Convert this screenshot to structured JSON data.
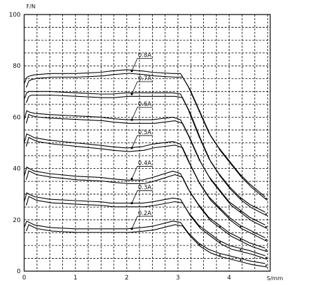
{
  "chart_data": {
    "type": "line",
    "title": "",
    "xlabel": "S/mm",
    "ylabel": "F/N",
    "xlim": [
      0,
      4.8
    ],
    "ylim": [
      0,
      100
    ],
    "x_ticks": [
      "0",
      "1",
      "2",
      "3",
      "4"
    ],
    "y_ticks": [
      "0",
      "20",
      "40",
      "60",
      "80",
      "100"
    ],
    "grid": true,
    "band_offset": 1.4,
    "series": [
      {
        "name": "0.8A",
        "x": [
          0,
          0.05,
          0.1,
          0.2,
          0.5,
          1.0,
          1.5,
          1.7,
          2.0,
          2.3,
          2.5,
          2.9,
          3.05,
          3.2,
          3.4,
          3.6,
          3.8,
          4.0,
          4.2,
          4.4,
          4.7
        ],
        "y": [
          73,
          75.5,
          76,
          76.5,
          77,
          77,
          77.5,
          78,
          78.5,
          78,
          77.5,
          77,
          77,
          72,
          63,
          54,
          48,
          43,
          38,
          34,
          29
        ]
      },
      {
        "name": "0.7A",
        "x": [
          0,
          0.05,
          0.1,
          0.2,
          0.5,
          1.0,
          1.5,
          1.7,
          2.0,
          2.3,
          2.5,
          2.9,
          3.05,
          3.2,
          3.4,
          3.6,
          3.8,
          4.0,
          4.2,
          4.4,
          4.7
        ],
        "y": [
          67,
          69.5,
          70,
          70,
          70,
          69.5,
          69,
          69,
          69.5,
          69.5,
          69.5,
          69.5,
          69,
          63,
          53,
          44,
          38,
          33,
          29,
          26,
          23
        ]
      },
      {
        "name": "0.6A",
        "x": [
          0,
          0.05,
          0.1,
          0.2,
          0.5,
          1.0,
          1.5,
          1.7,
          2.0,
          2.3,
          2.5,
          2.9,
          3.05,
          3.2,
          3.4,
          3.6,
          3.8,
          4.0,
          4.2,
          4.4,
          4.7
        ],
        "y": [
          59,
          62.5,
          62,
          61.5,
          61,
          60.5,
          60,
          59.5,
          59,
          59,
          59,
          60,
          59,
          53,
          44,
          37,
          32,
          27,
          24,
          21,
          18
        ]
      },
      {
        "name": "0.5A",
        "x": [
          0,
          0.05,
          0.1,
          0.2,
          0.5,
          1.0,
          1.5,
          1.7,
          2.0,
          2.3,
          2.5,
          2.9,
          3.05,
          3.2,
          3.4,
          3.6,
          3.8,
          4.0,
          4.2,
          4.4,
          4.7
        ],
        "y": [
          50,
          53.5,
          53,
          52,
          51,
          50,
          49,
          48.5,
          48,
          48.5,
          49.5,
          50.5,
          49.5,
          43,
          35,
          29,
          25,
          21,
          18,
          16,
          13
        ]
      },
      {
        "name": "0.4A",
        "x": [
          0,
          0.05,
          0.1,
          0.2,
          0.5,
          1.0,
          1.5,
          1.7,
          2.0,
          2.3,
          2.5,
          2.9,
          3.05,
          3.2,
          3.4,
          3.6,
          3.8,
          4.0,
          4.2,
          4.4,
          4.7
        ],
        "y": [
          37,
          40.5,
          40,
          39,
          38,
          37,
          36.5,
          36,
          35.5,
          35.5,
          36.5,
          39,
          38,
          32,
          26,
          21,
          18,
          15,
          13,
          11,
          9
        ]
      },
      {
        "name": "0.3A",
        "x": [
          0,
          0.05,
          0.1,
          0.2,
          0.5,
          1.0,
          1.5,
          1.7,
          2.0,
          2.3,
          2.5,
          2.9,
          3.05,
          3.2,
          3.4,
          3.6,
          3.8,
          4.0,
          4.2,
          4.4,
          4.7
        ],
        "y": [
          27,
          30.5,
          30,
          29,
          28,
          27.5,
          27,
          26.5,
          26.5,
          26.5,
          27,
          28.5,
          28,
          23,
          18,
          15,
          12,
          10,
          9,
          8,
          6
        ]
      },
      {
        "name": "0.2A",
        "x": [
          0,
          0.05,
          0.1,
          0.2,
          0.5,
          1.0,
          1.5,
          1.7,
          2.0,
          2.3,
          2.5,
          2.9,
          3.05,
          3.2,
          3.4,
          3.6,
          3.8,
          4.0,
          4.2,
          4.4,
          4.7
        ],
        "y": [
          17,
          19.5,
          19,
          18,
          17,
          16.5,
          16.5,
          16.5,
          16.5,
          17,
          17.5,
          19.5,
          19,
          15,
          11,
          8.5,
          7,
          6,
          5,
          4,
          3
        ]
      }
    ],
    "label_anchor": [
      {
        "name": "0.8A",
        "x": 2.1,
        "y": 78
      },
      {
        "name": "0.7A",
        "x": 2.1,
        "y": 69
      },
      {
        "name": "0.6A",
        "x": 2.1,
        "y": 59
      },
      {
        "name": "0.5A",
        "x": 2.1,
        "y": 48
      },
      {
        "name": "0.4A",
        "x": 2.1,
        "y": 36
      },
      {
        "name": "0.3A",
        "x": 2.1,
        "y": 26.5
      },
      {
        "name": "0.2A",
        "x": 2.1,
        "y": 16.5
      }
    ]
  }
}
